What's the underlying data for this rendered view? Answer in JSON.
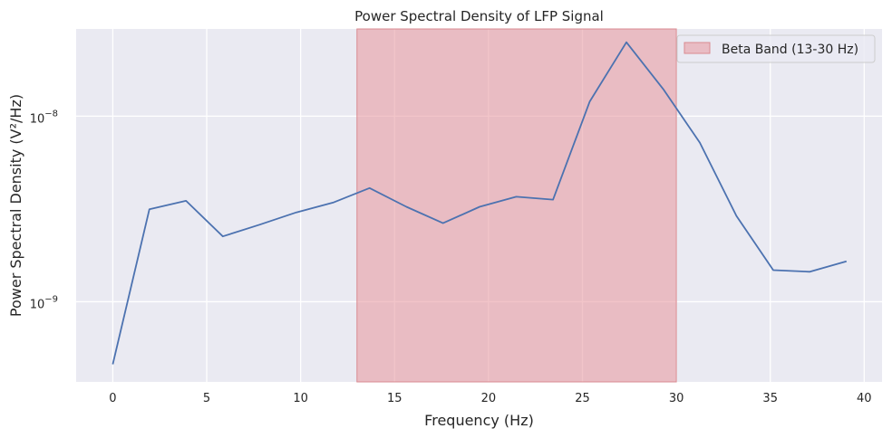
{
  "chart_data": {
    "type": "line",
    "title": "Power Spectral Density of LFP Signal",
    "xlabel": "Frequency (Hz)",
    "ylabel": "Power Spectral Density (V²/Hz)",
    "xlim": [
      -1.95,
      40.95
    ],
    "ylim": [
      3.7e-10,
      2.95e-08
    ],
    "yscale": "log",
    "grid": true,
    "legend_position": "top-right",
    "xticks": [
      0,
      5,
      10,
      15,
      20,
      25,
      30,
      35,
      40
    ],
    "yticks": [
      {
        "value": 1e-09,
        "mantissa": "10",
        "exponent": "−9"
      },
      {
        "value": 1e-08,
        "mantissa": "10",
        "exponent": "−8"
      }
    ],
    "series": [
      {
        "color": "#4c72b0",
        "x": [
          0,
          1.95,
          3.9,
          5.86,
          7.81,
          9.77,
          11.72,
          13.67,
          15.63,
          17.58,
          19.53,
          21.48,
          23.44,
          25.39,
          27.34,
          29.3,
          31.25,
          33.2,
          35.16,
          37.11,
          39.06
        ],
        "y": [
          4.6e-10,
          3.15e-09,
          3.5e-09,
          2.25e-09,
          2.6e-09,
          3.03e-09,
          3.42e-09,
          4.1e-09,
          3.25e-09,
          2.65e-09,
          3.25e-09,
          3.68e-09,
          3.55e-09,
          1.2e-08,
          2.5e-08,
          1.4e-08,
          7.2e-09,
          2.9e-09,
          1.48e-09,
          1.45e-09,
          1.65e-09
        ]
      }
    ],
    "band": {
      "name": "Beta Band (13-30 Hz)",
      "x_start": 13,
      "x_end": 30,
      "color": "#e8969c"
    }
  }
}
